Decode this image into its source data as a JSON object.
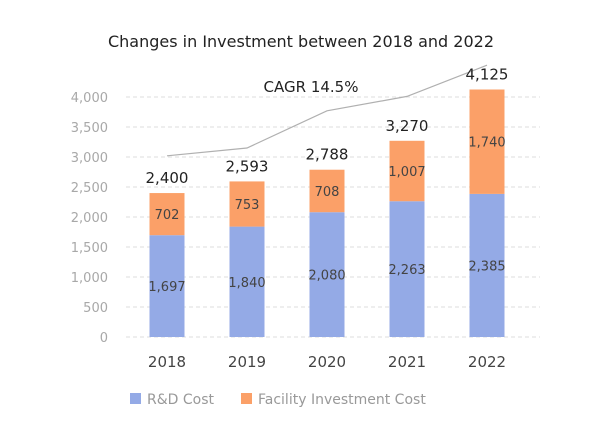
{
  "chart_data": {
    "type": "bar",
    "stacked": true,
    "title": "Changes in Investment between 2018 and 2022",
    "categories": [
      "2018",
      "2019",
      "2020",
      "2021",
      "2022"
    ],
    "series": [
      {
        "name": "R&D Cost",
        "color": "#94aae6",
        "values": [
          1697,
          1840,
          2080,
          2263,
          2385
        ],
        "labels": [
          "1,697",
          "1,840",
          "2,080",
          "2,263",
          "2,385"
        ]
      },
      {
        "name": "Facility Investment Cost",
        "color": "#fba068",
        "values": [
          702,
          753,
          708,
          1007,
          1740
        ],
        "labels": [
          "702",
          "753",
          "708",
          "1,007",
          "1,740"
        ]
      }
    ],
    "totals": [
      2400,
      2593,
      2788,
      3270,
      4125
    ],
    "total_labels": [
      "2,400",
      "2,593",
      "2,788",
      "3,270",
      "4,125"
    ],
    "trend_line": {
      "color": "#b0b0b0",
      "values": [
        3020,
        3150,
        3770,
        4010,
        4530
      ]
    },
    "annotation": "CAGR 14.5%",
    "yticks": [
      "0",
      "500",
      "1,000",
      "1,500",
      "2,000",
      "2,500",
      "3,000",
      "3,500",
      "4,000"
    ],
    "ytick_values": [
      0,
      500,
      1000,
      1500,
      2000,
      2500,
      3000,
      3500,
      4000
    ],
    "ylim": [
      0,
      4000
    ],
    "xlabel": "",
    "ylabel": "",
    "grid": true,
    "legend_position": "bottom-left"
  }
}
